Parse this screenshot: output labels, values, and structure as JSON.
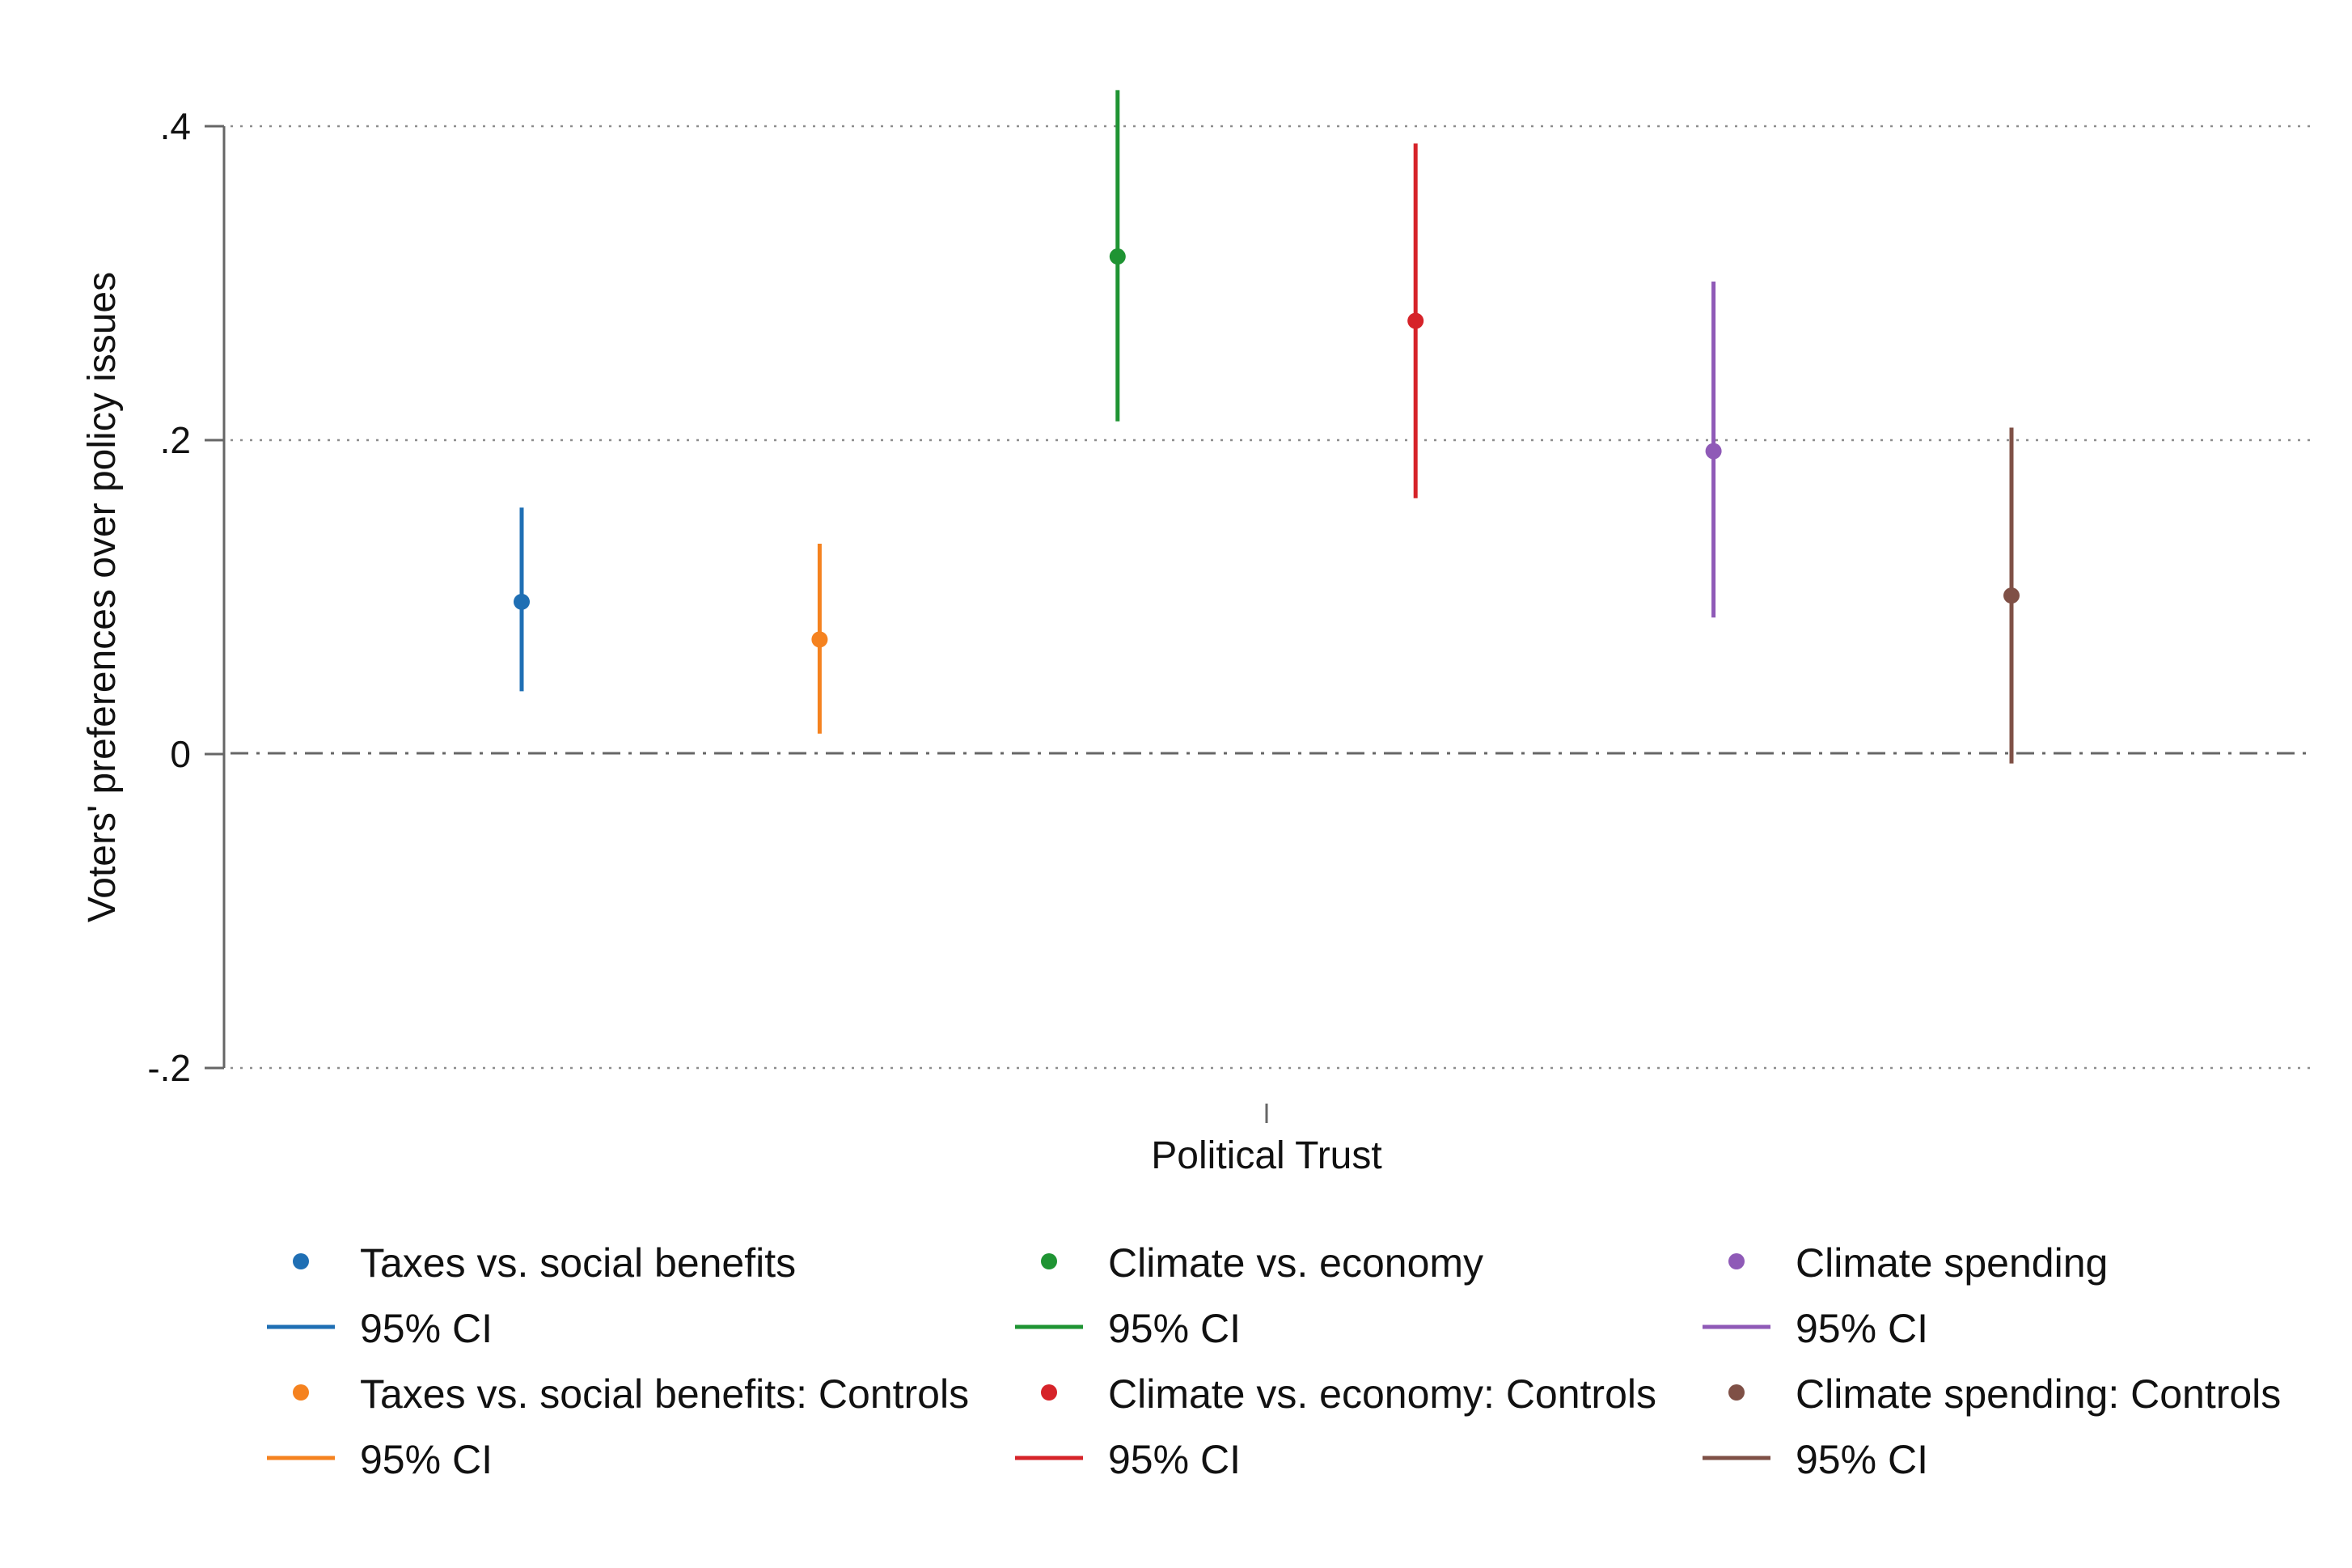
{
  "chart_data": {
    "type": "coefficient-plot",
    "title": "",
    "ylabel": "Voters' preferences over policy issues",
    "xlabel": "Political Trust",
    "ylim": [
      -0.2,
      0.4
    ],
    "yticks": [
      {
        "value": 0.4,
        "label": ".4"
      },
      {
        "value": 0.2,
        "label": ".2"
      },
      {
        "value": 0,
        "label": "0"
      },
      {
        "value": -0.2,
        "label": "-.2"
      }
    ],
    "reference_line": 0,
    "grid": "dotted horizontal",
    "series": [
      {
        "name": "Taxes vs. social benefits",
        "estimate": 0.097,
        "ci_low": 0.04,
        "ci_high": 0.157,
        "color": "#1f6fb4"
      },
      {
        "name": "Taxes vs. social benefits: Controls",
        "estimate": 0.073,
        "ci_low": 0.013,
        "ci_high": 0.134,
        "color": "#f5821f"
      },
      {
        "name": "Climate vs. economy",
        "estimate": 0.317,
        "ci_low": 0.212,
        "ci_high": 0.423,
        "color": "#1f9433"
      },
      {
        "name": "Climate vs. economy: Controls",
        "estimate": 0.276,
        "ci_low": 0.163,
        "ci_high": 0.389,
        "color": "#d62329"
      },
      {
        "name": "Climate spending",
        "estimate": 0.193,
        "ci_low": 0.087,
        "ci_high": 0.301,
        "color": "#8f5ab7"
      },
      {
        "name": "Climate spending: Controls",
        "estimate": 0.101,
        "ci_low": -0.006,
        "ci_high": 0.208,
        "color": "#7f5046"
      }
    ],
    "legend": {
      "position": "bottom",
      "ci_label": "95% CI"
    }
  }
}
